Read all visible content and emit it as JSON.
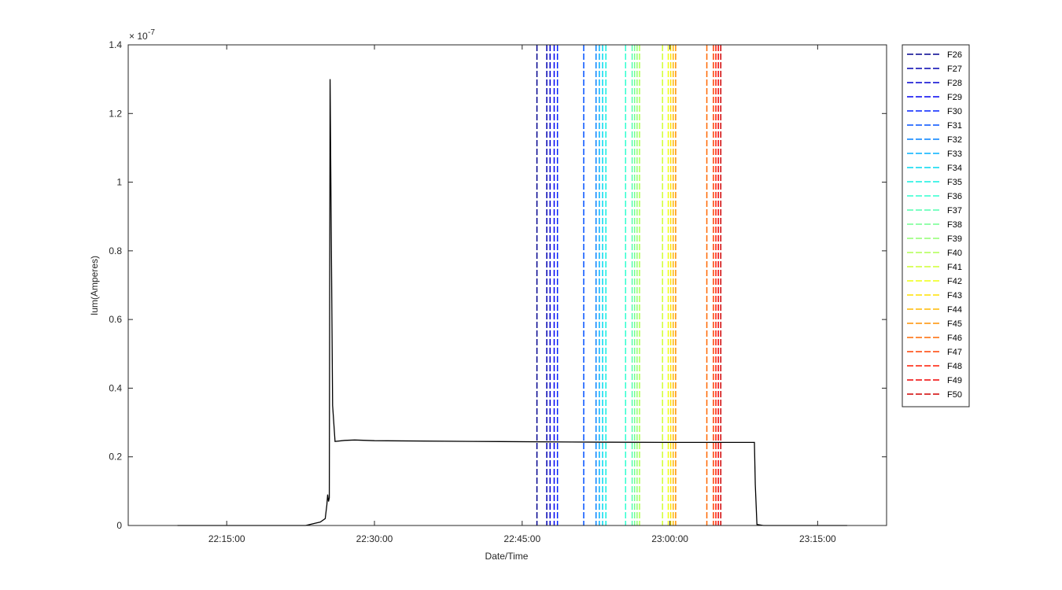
{
  "chart_data": {
    "type": "line",
    "xlabel": "Date/Time",
    "ylabel": "Ium(Amperes)",
    "y_exponent": "-7",
    "x_ticks": [
      "22:15:00",
      "22:30:00",
      "22:45:00",
      "23:00:00",
      "23:15:00"
    ],
    "xlim": [
      "22:05:00",
      "23:22:00"
    ],
    "ylim": [
      0,
      1.4
    ],
    "y_ticks": [
      "0",
      "0.2",
      "0.4",
      "0.6",
      "0.8",
      "1",
      "1.2",
      "1.4"
    ],
    "grid": false,
    "legend_position": "outside-right",
    "current_color": "#000000",
    "current": {
      "x": [
        "22:10:00",
        "22:23:00",
        "22:24:30",
        "22:25:00",
        "22:25:10",
        "22:25:15",
        "22:25:20",
        "22:25:25",
        "22:25:30",
        "22:25:45",
        "22:26:00",
        "22:27:00",
        "22:28:00",
        "22:30:00",
        "22:40:00",
        "22:50:00",
        "23:00:00",
        "23:08:35",
        "23:08:40",
        "23:08:50",
        "23:09:30",
        "23:15:00",
        "23:18:00"
      ],
      "y": [
        0,
        0,
        0.01,
        0.02,
        0.06,
        0.09,
        0.07,
        0.08,
        1.3,
        0.35,
        0.245,
        0.248,
        0.249,
        0.247,
        0.245,
        0.243,
        0.242,
        0.242,
        0.12,
        0.003,
        0,
        0,
        0
      ]
    },
    "markers": [
      {
        "name": "F26",
        "time": "22:46:30",
        "color": "#00008f"
      },
      {
        "name": "F27",
        "time": "22:47:30",
        "color": "#0000b0"
      },
      {
        "name": "F28",
        "time": "22:47:50",
        "color": "#0000d0"
      },
      {
        "name": "F29",
        "time": "22:48:15",
        "color": "#0000f0"
      },
      {
        "name": "F30",
        "time": "22:48:35",
        "color": "#0020ff"
      },
      {
        "name": "F31",
        "time": "22:51:15",
        "color": "#0050ff"
      },
      {
        "name": "F32",
        "time": "22:52:30",
        "color": "#0080ff"
      },
      {
        "name": "F33",
        "time": "22:52:50",
        "color": "#00b0ff"
      },
      {
        "name": "F34",
        "time": "22:53:10",
        "color": "#00d8f0"
      },
      {
        "name": "F35",
        "time": "22:53:30",
        "color": "#10f0e0"
      },
      {
        "name": "F36",
        "time": "22:55:30",
        "color": "#30ffcf"
      },
      {
        "name": "F37",
        "time": "22:56:10",
        "color": "#50ffaf"
      },
      {
        "name": "F38",
        "time": "22:56:25",
        "color": "#70ff8f"
      },
      {
        "name": "F39",
        "time": "22:56:40",
        "color": "#90ff70"
      },
      {
        "name": "F40",
        "time": "22:56:55",
        "color": "#afff50"
      },
      {
        "name": "F41",
        "time": "22:59:15",
        "color": "#cfff30"
      },
      {
        "name": "F42",
        "time": "22:59:50",
        "color": "#efff10"
      },
      {
        "name": "F43",
        "time": "23:00:05",
        "color": "#ffe000"
      },
      {
        "name": "F44",
        "time": "23:00:20",
        "color": "#ffb800"
      },
      {
        "name": "F45",
        "time": "23:00:35",
        "color": "#ff9000"
      },
      {
        "name": "F46",
        "time": "23:03:45",
        "color": "#ff6800"
      },
      {
        "name": "F47",
        "time": "23:04:25",
        "color": "#ff4000"
      },
      {
        "name": "F48",
        "time": "23:04:40",
        "color": "#ff1800"
      },
      {
        "name": "F49",
        "time": "23:04:55",
        "color": "#f00000"
      },
      {
        "name": "F50",
        "time": "23:05:10",
        "color": "#d00000"
      }
    ]
  }
}
